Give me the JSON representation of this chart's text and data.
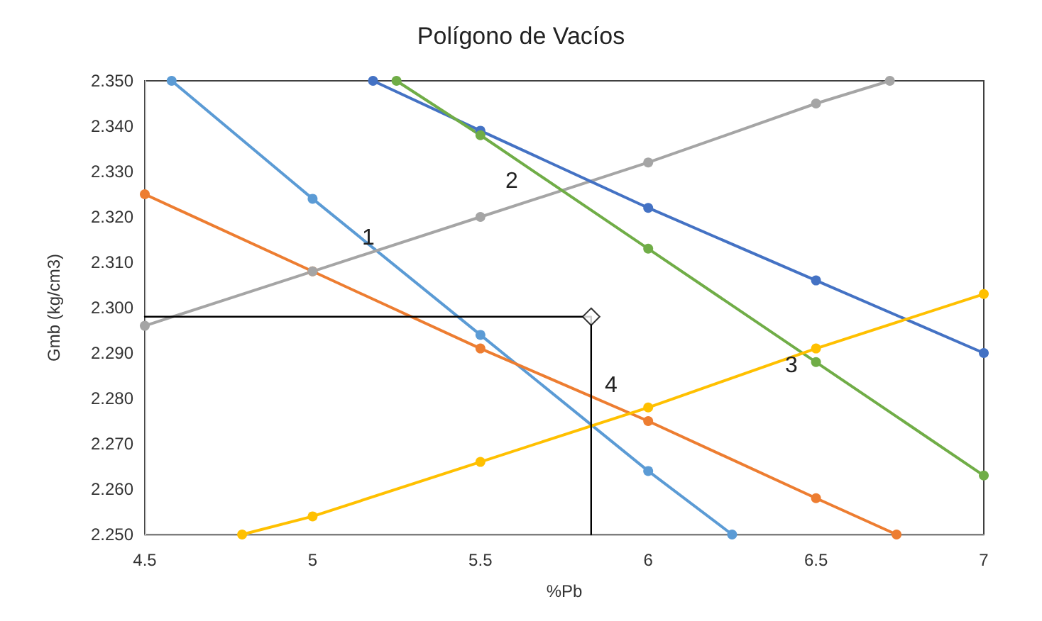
{
  "chart_data": {
    "type": "line",
    "title": "Polígono de Vacíos",
    "xlabel": "%Pb",
    "ylabel": "Gmb (kg/cm3)",
    "xlim": [
      4.5,
      7
    ],
    "xticks": [
      4.5,
      5,
      5.5,
      6,
      6.5,
      7
    ],
    "ylim": [
      2.25,
      2.35
    ],
    "yticks": [
      {
        "value": 2.25,
        "label": "2.250"
      },
      {
        "value": 2.26,
        "label": "2.260"
      },
      {
        "value": 2.27,
        "label": "2.270"
      },
      {
        "value": 2.28,
        "label": "2.280"
      },
      {
        "value": 2.29,
        "label": "2.290"
      },
      {
        "value": 2.3,
        "label": "2.300"
      },
      {
        "value": 2.31,
        "label": "2.310"
      },
      {
        "value": 2.32,
        "label": "2.320"
      },
      {
        "value": 2.33,
        "label": "2.330"
      },
      {
        "value": 2.34,
        "label": "2.340"
      },
      {
        "value": 2.35,
        "label": "2.350"
      }
    ],
    "grid": false,
    "line_style": "solid",
    "series": [
      {
        "marker": "circle",
        "color": "#5b9bd5",
        "x": [
          4.58,
          5,
          5.5,
          6,
          6.25
        ],
        "values": [
          2.35,
          2.324,
          2.294,
          2.264,
          2.25
        ]
      },
      {
        "marker": "circle",
        "color": "#ed7d31",
        "x": [
          4.5,
          5,
          5.5,
          6,
          6.5,
          6.74
        ],
        "values": [
          2.325,
          2.308,
          2.291,
          2.275,
          2.258,
          2.25
        ]
      },
      {
        "marker": "circle",
        "color": "#a5a5a5",
        "x": [
          4.5,
          5,
          5.5,
          6,
          6.5,
          6.72
        ],
        "values": [
          2.296,
          2.308,
          2.32,
          2.332,
          2.345,
          2.35
        ]
      },
      {
        "marker": "circle",
        "color": "#4472c4",
        "x": [
          5.18,
          5.5,
          6,
          6.5,
          7
        ],
        "values": [
          2.35,
          2.339,
          2.322,
          2.306,
          2.29
        ]
      },
      {
        "marker": "circle",
        "color": "#70ad47",
        "x": [
          5.25,
          5.5,
          6,
          6.5,
          7
        ],
        "values": [
          2.35,
          2.338,
          2.313,
          2.288,
          2.263
        ]
      },
      {
        "marker": "circle",
        "color": "#ffc000",
        "x": [
          4.79,
          5,
          5.5,
          6,
          6.5,
          7
        ],
        "values": [
          2.25,
          2.254,
          2.266,
          2.278,
          2.291,
          2.303
        ]
      },
      {
        "marker": "none",
        "color": "#000000",
        "x": [
          4.5,
          5.83,
          5.83
        ],
        "values": [
          2.298,
          2.298,
          2.25
        ]
      },
      {
        "type": "scatter",
        "marker": "diamond",
        "color": "#000000",
        "x": [
          5.83
        ],
        "values": [
          2.298
        ]
      }
    ],
    "annotations": [
      "1",
      "2",
      "3",
      "4"
    ]
  }
}
